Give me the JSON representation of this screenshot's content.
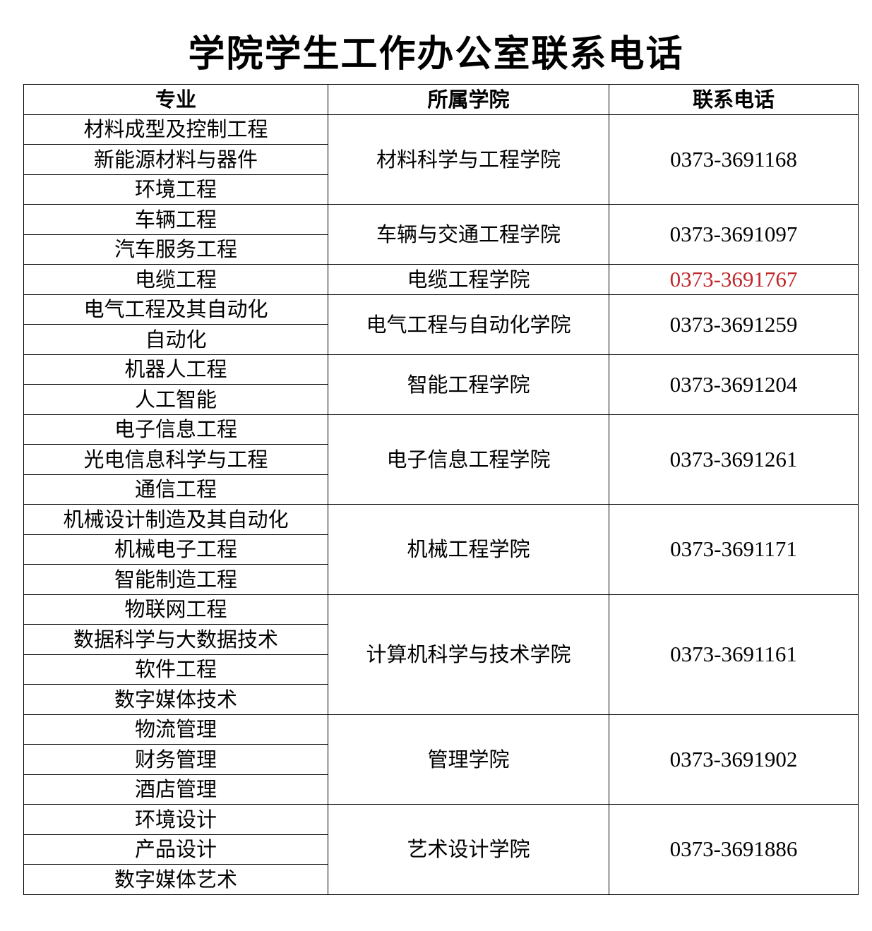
{
  "title": "学院学生工作办公室联系电话",
  "headers": [
    "专业",
    "所属学院",
    "联系电话"
  ],
  "highlight_color": "#c0262a",
  "groups": [
    {
      "college": "材料科学与工程学院",
      "phone": "0373-3691168",
      "majors": [
        "材料成型及控制工程",
        "新能源材料与器件",
        "环境工程"
      ]
    },
    {
      "college": "车辆与交通工程学院",
      "phone": "0373-3691097",
      "majors": [
        "车辆工程",
        "汽车服务工程"
      ]
    },
    {
      "college": "电缆工程学院",
      "phone": "0373-3691767",
      "highlight": true,
      "majors": [
        "电缆工程"
      ]
    },
    {
      "college": "电气工程与自动化学院",
      "phone": "0373-3691259",
      "majors": [
        "电气工程及其自动化",
        "自动化"
      ]
    },
    {
      "college": "智能工程学院",
      "phone": "0373-3691204",
      "majors": [
        "机器人工程",
        "人工智能"
      ]
    },
    {
      "college": "电子信息工程学院",
      "phone": "0373-3691261",
      "majors": [
        "电子信息工程",
        "光电信息科学与工程",
        "通信工程"
      ]
    },
    {
      "college": "机械工程学院",
      "phone": "0373-3691171",
      "majors": [
        "机械设计制造及其自动化",
        "机械电子工程",
        "智能制造工程"
      ]
    },
    {
      "college": "计算机科学与技术学院",
      "phone": "0373-3691161",
      "majors": [
        "物联网工程",
        "数据科学与大数据技术",
        "软件工程",
        "数字媒体技术"
      ]
    },
    {
      "college": "管理学院",
      "phone": "0373-3691902",
      "majors": [
        "物流管理",
        "财务管理",
        "酒店管理"
      ]
    },
    {
      "college": "艺术设计学院",
      "phone": "0373-3691886",
      "majors": [
        "环境设计",
        "产品设计",
        "数字媒体艺术"
      ]
    }
  ]
}
